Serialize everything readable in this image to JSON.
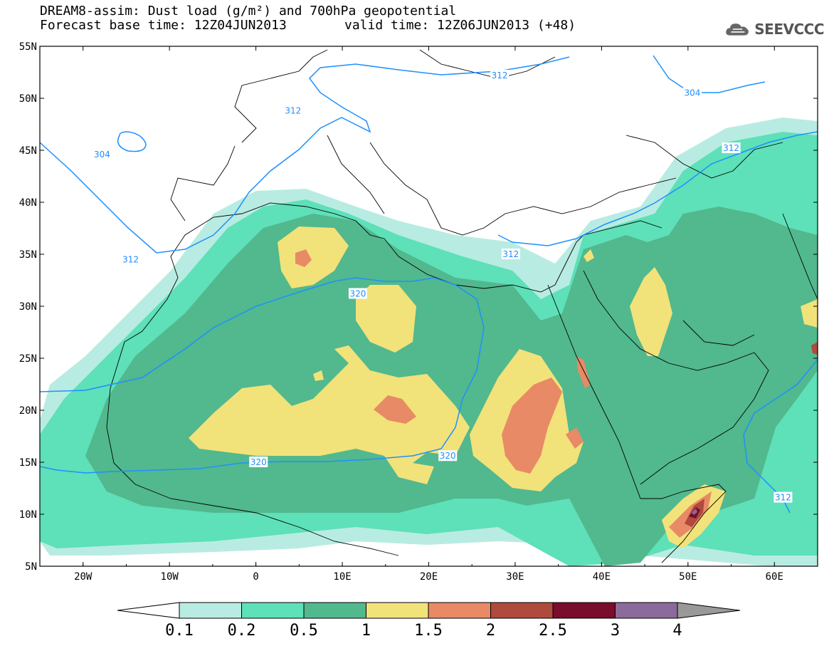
{
  "title": {
    "line1": "DREAM8-assim: Dust load (g/m²) and 700hPa geopotential",
    "line2": "Forecast base time: 12Z04JUN2013",
    "valid": "valid time: 12Z06JUN2013 (+48)"
  },
  "logo": {
    "text": "SEEVCCC",
    "icon": "cloud-icon"
  },
  "map": {
    "lat_labels": [
      "55N",
      "50N",
      "45N",
      "40N",
      "35N",
      "30N",
      "25N",
      "20N",
      "15N",
      "10N",
      "5N"
    ],
    "lon_labels": [
      "20W",
      "10W",
      "0",
      "10E",
      "20E",
      "30E",
      "40E",
      "50E",
      "60E"
    ],
    "lat_range": [
      5,
      55
    ],
    "lon_range": [
      -25,
      65
    ],
    "contour_labels": [
      {
        "text": "304",
        "lon": -17.8,
        "lat": 44.6
      },
      {
        "text": "312",
        "lon": -14.5,
        "lat": 34.5
      },
      {
        "text": "312",
        "lon": 4.3,
        "lat": 48.8
      },
      {
        "text": "312",
        "lon": 28.2,
        "lat": 52.2
      },
      {
        "text": "304",
        "lon": 50.5,
        "lat": 50.5
      },
      {
        "text": "312",
        "lon": 55.0,
        "lat": 45.2
      },
      {
        "text": "312",
        "lon": 29.5,
        "lat": 35.0
      },
      {
        "text": "320",
        "lon": 11.8,
        "lat": 31.2
      },
      {
        "text": "320",
        "lon": 0.3,
        "lat": 15.0
      },
      {
        "text": "320",
        "lon": 22.2,
        "lat": 15.6
      },
      {
        "text": "312",
        "lon": 61.0,
        "lat": 11.6
      }
    ]
  },
  "colorbar": {
    "labels": [
      "0.1",
      "0.2",
      "0.5",
      "1",
      "1.5",
      "2",
      "2.5",
      "3",
      "4"
    ],
    "colors": [
      "#b8ece2",
      "#5ee0b8",
      "#52b88e",
      "#f2e27a",
      "#e88a66",
      "#b04a3c",
      "#7a0c2c",
      "#8c6a9c",
      "#999999"
    ]
  }
}
